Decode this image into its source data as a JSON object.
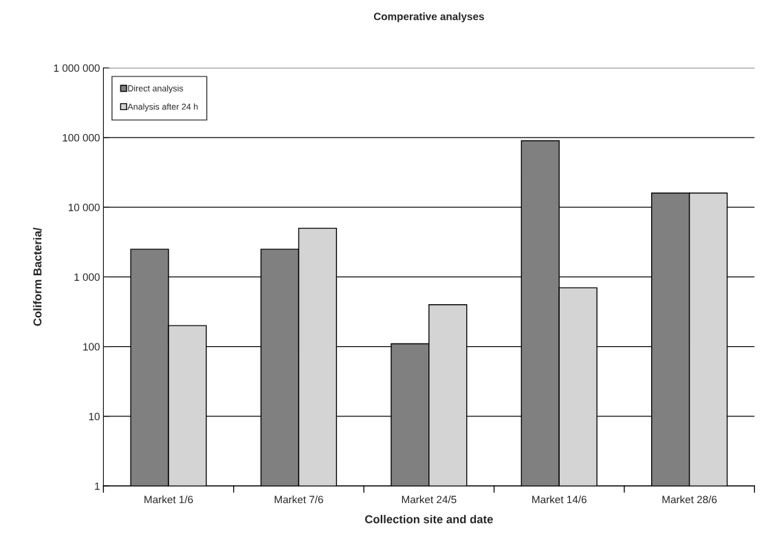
{
  "chart_data": {
    "type": "bar",
    "title": "Comperative analyses",
    "xlabel": "Collection site and date",
    "ylabel": "Coliform Bacteria/",
    "categories": [
      "Market 1/6",
      "Market 7/6",
      "Market 24/5",
      "Market 14/6",
      "Market 28/6"
    ],
    "series": [
      {
        "name": "Direct analysis",
        "color": "#808080",
        "values": [
          2500,
          2500,
          110,
          90000,
          16000
        ]
      },
      {
        "name": "Analysis after 24 h",
        "color": "#d4d4d4",
        "values": [
          200,
          5000,
          400,
          700,
          16000
        ]
      }
    ],
    "log": true,
    "ylim": [
      1,
      1000000
    ],
    "yticks": [
      1,
      10,
      100,
      {
        "value": 1000,
        "label": "1 000"
      },
      {
        "value": 10000,
        "label": "10 000"
      },
      {
        "value": 100000,
        "label": "100 000"
      },
      {
        "value": 1000000,
        "label": "1 000 000"
      }
    ],
    "grid": "y",
    "legend": "top left"
  }
}
